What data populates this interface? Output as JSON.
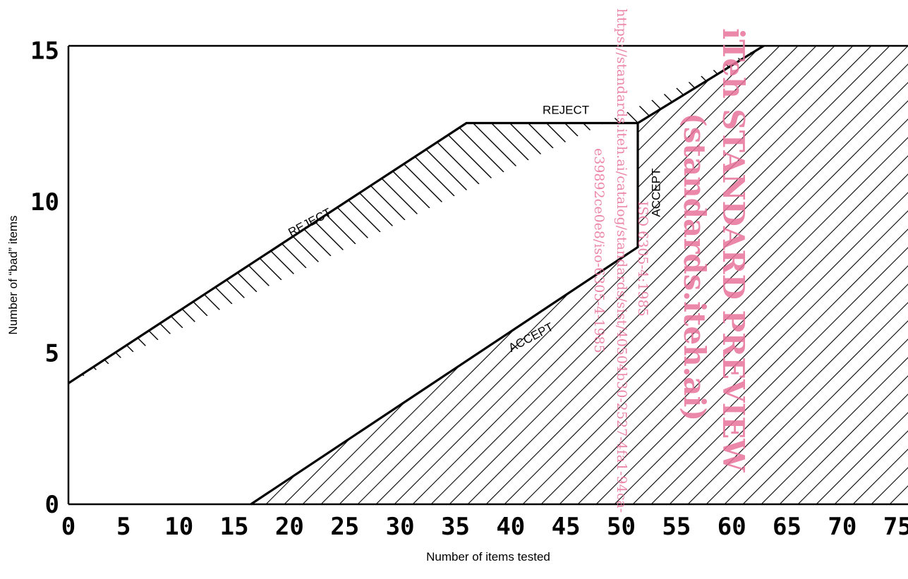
{
  "chart_data": {
    "type": "area",
    "xlabel": "Number of items tested",
    "ylabel": "Number of “bad” items",
    "xlim": [
      0,
      75
    ],
    "ylim": [
      0,
      15
    ],
    "x_ticks": [
      0,
      5,
      10,
      15,
      20,
      25,
      30,
      35,
      40,
      45,
      50,
      55,
      60,
      65,
      70,
      75
    ],
    "y_ticks": [
      0,
      5,
      10,
      15
    ],
    "grid": false,
    "reject_boundary": [
      [
        0,
        4
      ],
      [
        36,
        12.6
      ],
      [
        51.5,
        12.6
      ],
      [
        64,
        15.4
      ]
    ],
    "accept_boundary": [
      [
        16.5,
        0
      ],
      [
        51.5,
        8.5
      ],
      [
        51.5,
        12.6
      ]
    ],
    "annotations": [
      {
        "text": "REJECT",
        "x": 22,
        "y": 9.2,
        "angle": -28
      },
      {
        "text": "REJECT",
        "x": 45,
        "y": 12.9,
        "angle": 0
      },
      {
        "text": "ACCEPT",
        "x": 42,
        "y": 5.4,
        "angle": -28
      },
      {
        "text": "ACCEPT",
        "x": 53.5,
        "y": 10.3,
        "angle": -90
      }
    ]
  },
  "watermark": {
    "line1": "iTeh STANDARD PREVIEW",
    "line2": "(standards.iteh.ai)",
    "line3": "ISO 6305-4:1985",
    "line4": "https://standards.iteh.ai/catalog/standards/sist/40504b30-2527-4fa1-94ca-",
    "line5": "e39892ce0e8/iso-6305-4-1985"
  }
}
